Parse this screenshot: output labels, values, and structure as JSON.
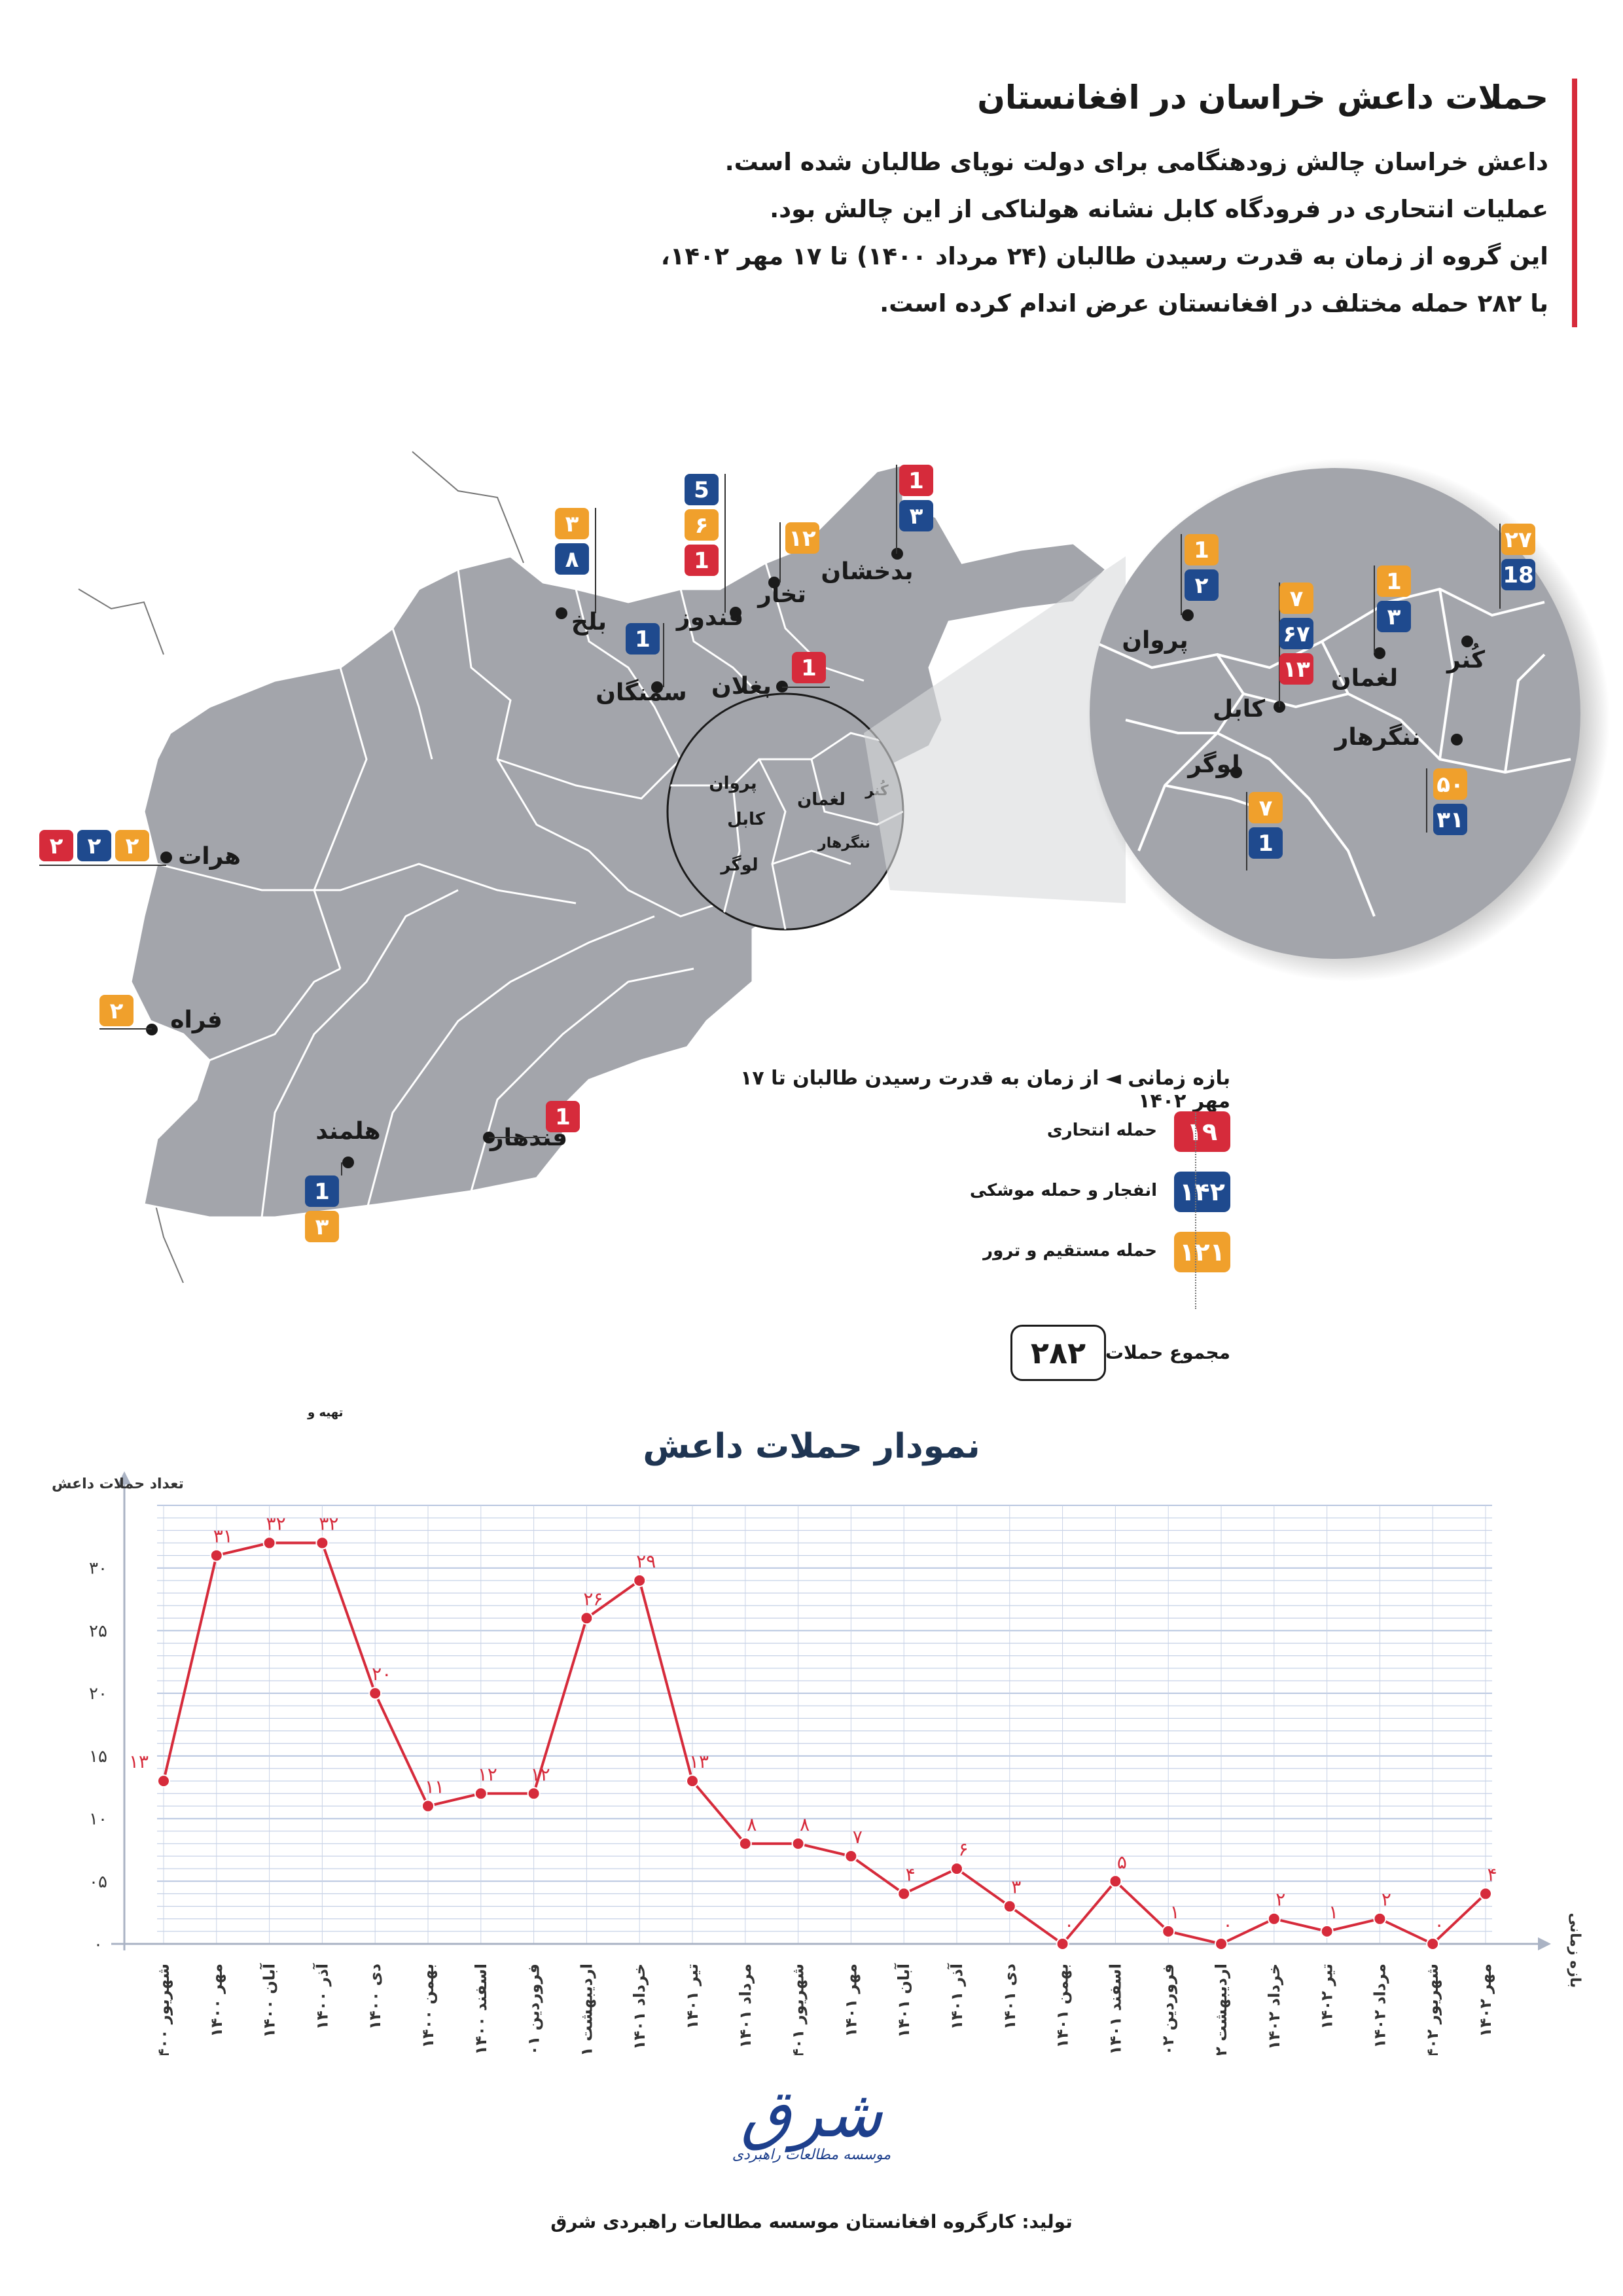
{
  "header": {
    "title": "حملات داعش خراسان در افغانستان",
    "lines": [
      "داعش خراسان چالش زودهنگامی برای دولت نوپای طالبان شده است.",
      "عملیات انتحاری در فرودگاه کابل نشانه هولناکی از این چالش بود.",
      "این گروه از زمان به قدرت رسیدن طالبان (۲۴ مرداد ۱۴۰۰)  تا ۱۷ مهر ۱۴۰۲،",
      "با ۲۸۲ حمله مختلف در افغانستان عرض اندام کرده است."
    ]
  },
  "colors": {
    "suicide": "#d62b3b",
    "explosion": "#1f4a8e",
    "direct": "#f0a02c",
    "map": "#a3a5ab",
    "line": "#d62b3b"
  },
  "map": {
    "provinces": [
      {
        "name": "هرات",
        "badges": [
          {
            "type": "suicide",
            "value": "۲"
          },
          {
            "type": "explosion",
            "value": "۲"
          },
          {
            "type": "direct",
            "value": "۲"
          }
        ]
      },
      {
        "name": "فراه",
        "badges": [
          {
            "type": "direct",
            "value": "۲"
          }
        ]
      },
      {
        "name": "هلمند",
        "badges": [
          {
            "type": "explosion",
            "value": "1"
          },
          {
            "type": "direct",
            "value": "۳"
          }
        ]
      },
      {
        "name": "قندهار",
        "badges": [
          {
            "type": "suicide",
            "value": "1"
          }
        ]
      },
      {
        "name": "بلخ",
        "badges": [
          {
            "type": "direct",
            "value": "۳"
          },
          {
            "type": "explosion",
            "value": "۸"
          }
        ]
      },
      {
        "name": "سمنگان",
        "badges": [
          {
            "type": "explosion",
            "value": "1"
          }
        ]
      },
      {
        "name": "قندوز",
        "badges": [
          {
            "type": "explosion",
            "value": "5"
          },
          {
            "type": "direct",
            "value": "۶"
          },
          {
            "type": "suicide",
            "value": "1"
          }
        ]
      },
      {
        "name": "تخار",
        "badges": [
          {
            "type": "direct",
            "value": "۱۲"
          }
        ]
      },
      {
        "name": "بدخشان",
        "badges": [
          {
            "type": "suicide",
            "value": "1"
          },
          {
            "type": "explosion",
            "value": "۳"
          }
        ]
      },
      {
        "name": "بغلان",
        "badges": [
          {
            "type": "suicide",
            "value": "1"
          }
        ]
      }
    ],
    "small_circle_labels": [
      "پروان",
      "کابل",
      "لغمان",
      "ننگرهار",
      "لوگر",
      "کُنر"
    ],
    "zoom": [
      {
        "name": "پروان",
        "badges": [
          {
            "type": "direct",
            "value": "1"
          },
          {
            "type": "explosion",
            "value": "۲"
          }
        ]
      },
      {
        "name": "کابل",
        "badges": [
          {
            "type": "direct",
            "value": "۷"
          },
          {
            "type": "explosion",
            "value": "۶۷"
          },
          {
            "type": "suicide",
            "value": "۱۳"
          }
        ]
      },
      {
        "name": "لغمان",
        "badges": [
          {
            "type": "direct",
            "value": "1"
          },
          {
            "type": "explosion",
            "value": "۳"
          }
        ]
      },
      {
        "name": "کُنر",
        "badges": [
          {
            "type": "direct",
            "value": "۲۷"
          },
          {
            "type": "explosion",
            "value": "18"
          }
        ]
      },
      {
        "name": "ننگرهار",
        "badges": [
          {
            "type": "direct",
            "value": "۵۰"
          },
          {
            "type": "explosion",
            "value": "۳۱"
          }
        ]
      },
      {
        "name": "لوگر",
        "badges": [
          {
            "type": "direct",
            "value": "۷"
          },
          {
            "type": "explosion",
            "value": "1"
          }
        ]
      }
    ]
  },
  "legend": {
    "period": "بازه زمانی ◄  از زمان به قدرت رسیدن طالبان تا ۱۷ مهر ۱۴۰۲",
    "items": [
      {
        "type": "suicide",
        "value": "۱۹",
        "label": "حمله انتحاری"
      },
      {
        "type": "explosion",
        "value": "۱۴۲",
        "label": "انفجار و حمله موشکی"
      },
      {
        "type": "direct",
        "value": "۱۲۱",
        "label": "حمله مستقیم و ترور"
      }
    ],
    "total_label": "مجموع حملات",
    "total_value": "۲۸۲"
  },
  "tiny_note": "تهیه و",
  "chart_data": {
    "type": "line",
    "title": "نمودار حملات داعش",
    "ylabel": "تعداد حملات داعش",
    "xlabel": "بازه زمانی",
    "ylim": [
      0,
      35
    ],
    "yticks": [
      0,
      5,
      10,
      15,
      20,
      25,
      30
    ],
    "ytick_labels": [
      "۰",
      "۰۵",
      "۱۰",
      "۱۵",
      "۲۰",
      "۲۵",
      "۳۰"
    ],
    "grid": true,
    "categories": [
      "شهریور ۱۴۰۰",
      "مهر ۱۴۰۰",
      "آبان ۱۴۰۰",
      "آذر ۱۴۰۰",
      "دی ۱۴۰۰",
      "بهمن ۱۴۰۰",
      "اسفند ۱۴۰۰",
      "فروردین ۱۴۰۱",
      "اردیبهشت ۱۴۰۱",
      "خرداد ۱۴۰۱",
      "تیر ۱۴۰۱",
      "مرداد ۱۴۰۱",
      "شهریور ۱۴۰۱",
      "مهر ۱۴۰۱",
      "آبان ۱۴۰۱",
      "آذر ۱۴۰۱",
      "دی ۱۴۰۱",
      "بهمن ۱۴۰۱",
      "اسفند ۱۴۰۱",
      "فروردین ۱۴۰۲",
      "اردیبهشت ۱۴۰۲",
      "خرداد ۱۴۰۲",
      "تیر ۱۴۰۲",
      "مرداد ۱۴۰۲",
      "شهریور ۱۴۰۲",
      "مهر ۱۴۰۲"
    ],
    "values": [
      13,
      31,
      32,
      32,
      20,
      11,
      12,
      12,
      26,
      29,
      13,
      8,
      8,
      7,
      4,
      6,
      3,
      0,
      5,
      1,
      0,
      2,
      1,
      2,
      0,
      4
    ],
    "value_labels": [
      "۱۳",
      "۳۱",
      "۳۲",
      "۳۲",
      "۲۰",
      "۱۱",
      "۱۲",
      "۱۲",
      "۲۶",
      "۲۹",
      "۱۳",
      "۸",
      "۸",
      "۷",
      "۴",
      "۶",
      "۳",
      "۰",
      "۵",
      "۱",
      "۰",
      "۲",
      "۱",
      "۲",
      "۰",
      "۴"
    ]
  },
  "logo": {
    "mark": "شرق",
    "subtitle": "موسسه مطالعات راهبردی"
  },
  "credit": "تولید: کارگروه افغانستان موسسه مطالعات راهبردی شرق"
}
